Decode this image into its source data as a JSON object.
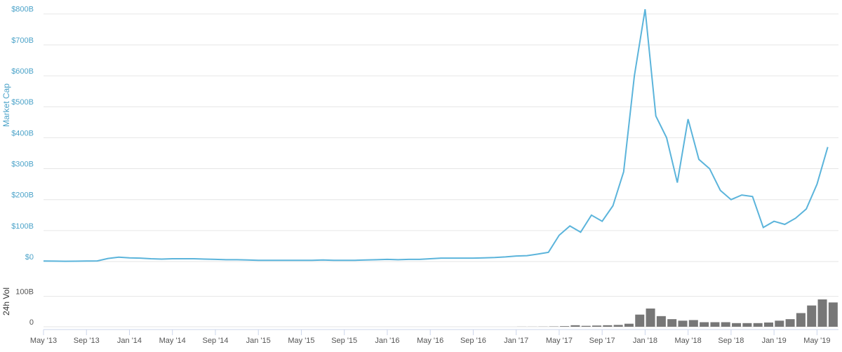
{
  "chart_data": [
    {
      "type": "line",
      "ylabel": "Market Cap",
      "color": "#5bb4db",
      "grid": true,
      "x": [
        "2013-05",
        "2013-06",
        "2013-07",
        "2013-08",
        "2013-09",
        "2013-10",
        "2013-11",
        "2013-12",
        "2014-01",
        "2014-02",
        "2014-03",
        "2014-04",
        "2014-05",
        "2014-06",
        "2014-07",
        "2014-08",
        "2014-09",
        "2014-10",
        "2014-11",
        "2014-12",
        "2015-01",
        "2015-02",
        "2015-03",
        "2015-04",
        "2015-05",
        "2015-06",
        "2015-07",
        "2015-08",
        "2015-09",
        "2015-10",
        "2015-11",
        "2015-12",
        "2016-01",
        "2016-02",
        "2016-03",
        "2016-04",
        "2016-05",
        "2016-06",
        "2016-07",
        "2016-08",
        "2016-09",
        "2016-10",
        "2016-11",
        "2016-12",
        "2017-01",
        "2017-02",
        "2017-03",
        "2017-04",
        "2017-05",
        "2017-06",
        "2017-07",
        "2017-08",
        "2017-09",
        "2017-10",
        "2017-11",
        "2017-12",
        "2018-01",
        "2018-02",
        "2018-03",
        "2018-04",
        "2018-05",
        "2018-06",
        "2018-07",
        "2018-08",
        "2018-09",
        "2018-10",
        "2018-11",
        "2018-12",
        "2019-01",
        "2019-02",
        "2019-03",
        "2019-04",
        "2019-05",
        "2019-06"
      ],
      "values": [
        1.5,
        1.3,
        1.0,
        1.2,
        1.5,
        2.0,
        10,
        14,
        12,
        11,
        9,
        8,
        9,
        9,
        9,
        8,
        7,
        6,
        6,
        5,
        4,
        4,
        4,
        4,
        4,
        4,
        5,
        4,
        4,
        4,
        5,
        6,
        7,
        6,
        7,
        7,
        9,
        11,
        11,
        11,
        11,
        12,
        13,
        15,
        18,
        19,
        24,
        30,
        85,
        115,
        95,
        150,
        130,
        180,
        290,
        600,
        815,
        470,
        400,
        255,
        460,
        330,
        300,
        230,
        200,
        215,
        210,
        110,
        130,
        120,
        140,
        170,
        250,
        370
      ],
      "xlim": [
        "2013-05",
        "2019-07"
      ],
      "ylim": [
        0,
        820
      ],
      "yticks": [
        {
          "value": 0,
          "label": "$0"
        },
        {
          "value": 100,
          "label": "$100B"
        },
        {
          "value": 200,
          "label": "$200B"
        },
        {
          "value": 300,
          "label": "$300B"
        },
        {
          "value": 400,
          "label": "$400B"
        },
        {
          "value": 500,
          "label": "$500B"
        },
        {
          "value": 600,
          "label": "$600B"
        },
        {
          "value": 700,
          "label": "$700B"
        },
        {
          "value": 800,
          "label": "$800B"
        }
      ]
    },
    {
      "type": "bar",
      "ylabel": "24h Vol",
      "color": "#777777",
      "grid": true,
      "x": [
        "2013-05",
        "2013-06",
        "2013-07",
        "2013-08",
        "2013-09",
        "2013-10",
        "2013-11",
        "2013-12",
        "2014-01",
        "2014-02",
        "2014-03",
        "2014-04",
        "2014-05",
        "2014-06",
        "2014-07",
        "2014-08",
        "2014-09",
        "2014-10",
        "2014-11",
        "2014-12",
        "2015-01",
        "2015-02",
        "2015-03",
        "2015-04",
        "2015-05",
        "2015-06",
        "2015-07",
        "2015-08",
        "2015-09",
        "2015-10",
        "2015-11",
        "2015-12",
        "2016-01",
        "2016-02",
        "2016-03",
        "2016-04",
        "2016-05",
        "2016-06",
        "2016-07",
        "2016-08",
        "2016-09",
        "2016-10",
        "2016-11",
        "2016-12",
        "2017-01",
        "2017-02",
        "2017-03",
        "2017-04",
        "2017-05",
        "2017-06",
        "2017-07",
        "2017-08",
        "2017-09",
        "2017-10",
        "2017-11",
        "2017-12",
        "2018-01",
        "2018-02",
        "2018-03",
        "2018-04",
        "2018-05",
        "2018-06",
        "2018-07",
        "2018-08",
        "2018-09",
        "2018-10",
        "2018-11",
        "2018-12",
        "2019-01",
        "2019-02",
        "2019-03",
        "2019-04",
        "2019-05",
        "2019-06"
      ],
      "values": [
        0,
        0,
        0,
        0,
        0,
        0,
        0,
        0,
        0,
        0,
        0,
        0,
        0,
        0,
        0,
        0,
        0,
        0,
        0,
        0,
        0,
        0,
        0,
        0,
        0,
        0,
        0,
        0,
        0,
        0,
        0,
        0,
        0,
        0,
        0,
        0,
        0,
        0,
        0,
        0,
        0,
        0,
        0,
        0,
        0.3,
        0.3,
        0.5,
        1,
        2,
        5,
        3,
        4,
        5,
        6,
        10,
        40,
        60,
        35,
        25,
        20,
        22,
        15,
        15,
        15,
        12,
        12,
        12,
        14,
        20,
        25,
        45,
        70,
        90,
        80
      ],
      "xlim": [
        "2013-05",
        "2019-07"
      ],
      "ylim": [
        0,
        150
      ],
      "yticks": [
        0,
        {
          "value": 100,
          "label": "100B"
        }
      ],
      "xticks": [
        {
          "value": "2013-05",
          "label": "May '13"
        },
        {
          "value": "2013-09",
          "label": "Sep '13"
        },
        {
          "value": "2014-01",
          "label": "Jan '14"
        },
        {
          "value": "2014-05",
          "label": "May '14"
        },
        {
          "value": "2014-09",
          "label": "Sep '14"
        },
        {
          "value": "2015-01",
          "label": "Jan '15"
        },
        {
          "value": "2015-05",
          "label": "May '15"
        },
        {
          "value": "2015-09",
          "label": "Sep '15"
        },
        {
          "value": "2016-01",
          "label": "Jan '16"
        },
        {
          "value": "2016-05",
          "label": "May '16"
        },
        {
          "value": "2016-09",
          "label": "Sep '16"
        },
        {
          "value": "2017-01",
          "label": "Jan '17"
        },
        {
          "value": "2017-05",
          "label": "May '17"
        },
        {
          "value": "2017-09",
          "label": "Sep '17"
        },
        {
          "value": "2018-01",
          "label": "Jan '18"
        },
        {
          "value": "2018-05",
          "label": "May '18"
        },
        {
          "value": "2018-09",
          "label": "Sep '18"
        },
        {
          "value": "2019-01",
          "label": "Jan '19"
        },
        {
          "value": "2019-05",
          "label": "May '19"
        }
      ]
    }
  ]
}
